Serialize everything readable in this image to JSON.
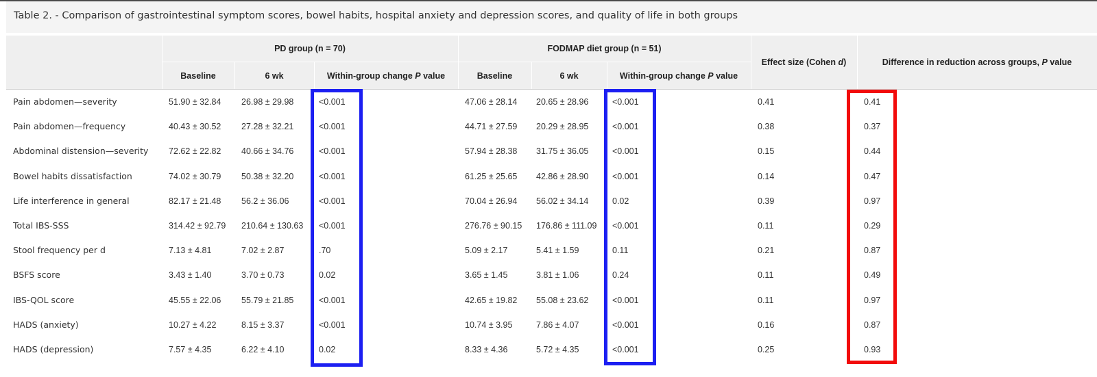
{
  "caption": "Table 2. - Comparison of gastrointestinal symptom scores, bowel habits, hospital anxiety and depression scores, and quality of life in both groups",
  "headers": {
    "pd_group": "PD group (n = 70)",
    "fodmap_group": "FODMAP diet group (n = 51)",
    "baseline": "Baseline",
    "week6": "6 wk",
    "within_change_prefix": "Within-group change ",
    "within_change_p": "P",
    "within_change_suffix": " value",
    "effect_size_prefix": "Effect size (Cohen ",
    "effect_size_d": "d",
    "effect_size_suffix": ")",
    "difference_prefix": "Difference in reduction across groups, ",
    "difference_p": "P",
    "difference_suffix": " value"
  },
  "rows": [
    {
      "label": "Pain abdomen—severity",
      "pd_baseline": "51.90 ± 32.84",
      "pd_6wk": "26.98 ± 29.98",
      "pd_p": "<0.001",
      "fd_baseline": "47.06 ± 28.14",
      "fd_6wk": "20.65 ± 28.96",
      "fd_p": "<0.001",
      "effect": "0.41",
      "diff_p": "0.41"
    },
    {
      "label": "Pain abdomen—frequency",
      "pd_baseline": "40.43 ± 30.52",
      "pd_6wk": "27.28 ± 32.21",
      "pd_p": "<0.001",
      "fd_baseline": "44.71 ± 27.59",
      "fd_6wk": "20.29 ± 28.95",
      "fd_p": "<0.001",
      "effect": "0.38",
      "diff_p": "0.37"
    },
    {
      "label": "Abdominal distension—severity",
      "pd_baseline": "72.62 ± 22.82",
      "pd_6wk": "40.66 ± 34.76",
      "pd_p": "<0.001",
      "fd_baseline": "57.94 ± 28.38",
      "fd_6wk": "31.75 ± 36.05",
      "fd_p": "<0.001",
      "effect": "0.15",
      "diff_p": "0.44"
    },
    {
      "label": "Bowel habits dissatisfaction",
      "pd_baseline": "74.02 ± 30.79",
      "pd_6wk": "50.38 ± 32.20",
      "pd_p": "<0.001",
      "fd_baseline": "61.25 ± 25.65",
      "fd_6wk": "42.86 ± 28.90",
      "fd_p": "<0.001",
      "effect": "0.14",
      "diff_p": "0.47"
    },
    {
      "label": "Life interference in general",
      "pd_baseline": "82.17 ± 21.48",
      "pd_6wk": "56.2 ± 36.06",
      "pd_p": "<0.001",
      "fd_baseline": "70.04 ± 26.94",
      "fd_6wk": "56.02 ± 34.14",
      "fd_p": "0.02",
      "effect": "0.39",
      "diff_p": "0.97"
    },
    {
      "label": "Total IBS-SSS",
      "pd_baseline": "314.42 ± 92.79",
      "pd_6wk": "210.64 ± 130.63",
      "pd_p": "<0.001",
      "fd_baseline": "276.76 ± 90.15",
      "fd_6wk": "176.86 ± 111.09",
      "fd_p": "<0.001",
      "effect": "0.11",
      "diff_p": "0.29"
    },
    {
      "label": "Stool frequency per d",
      "pd_baseline": "7.13 ± 4.81",
      "pd_6wk": "7.02 ± 2.87",
      "pd_p": ".70",
      "fd_baseline": "5.09 ± 2.17",
      "fd_6wk": "5.41 ± 1.59",
      "fd_p": "0.11",
      "effect": "0.21",
      "diff_p": "0.87"
    },
    {
      "label": "BSFS score",
      "pd_baseline": "3.43 ± 1.40",
      "pd_6wk": "3.70 ± 0.73",
      "pd_p": "0.02",
      "fd_baseline": "3.65 ± 1.45",
      "fd_6wk": "3.81 ± 1.06",
      "fd_p": "0.24",
      "effect": "0.11",
      "diff_p": "0.49"
    },
    {
      "label": "IBS-QOL score",
      "pd_baseline": "45.55 ± 22.06",
      "pd_6wk": "55.79 ± 21.85",
      "pd_p": "<0.001",
      "fd_baseline": "42.65 ± 19.82",
      "fd_6wk": "55.08 ± 23.62",
      "fd_p": "<0.001",
      "effect": "0.11",
      "diff_p": "0.97"
    },
    {
      "label": "HADS (anxiety)",
      "pd_baseline": "10.27 ± 4.22",
      "pd_6wk": "8.15 ± 3.37",
      "pd_p": "<0.001",
      "fd_baseline": "10.74 ± 3.95",
      "fd_6wk": "7.86 ± 4.07",
      "fd_p": "<0.001",
      "effect": "0.16",
      "diff_p": "0.87"
    },
    {
      "label": "HADS (depression)",
      "pd_baseline": "7.57 ± 4.35",
      "pd_6wk": "6.22 ± 4.10",
      "pd_p": "0.02",
      "fd_baseline": "8.33 ± 4.36",
      "fd_6wk": "5.72 ± 4.35",
      "fd_p": "<0.001",
      "effect": "0.25",
      "diff_p": "0.93"
    }
  ],
  "highlights": {
    "blue_color": "#1c1ff2",
    "red_color": "#f20b0b"
  }
}
